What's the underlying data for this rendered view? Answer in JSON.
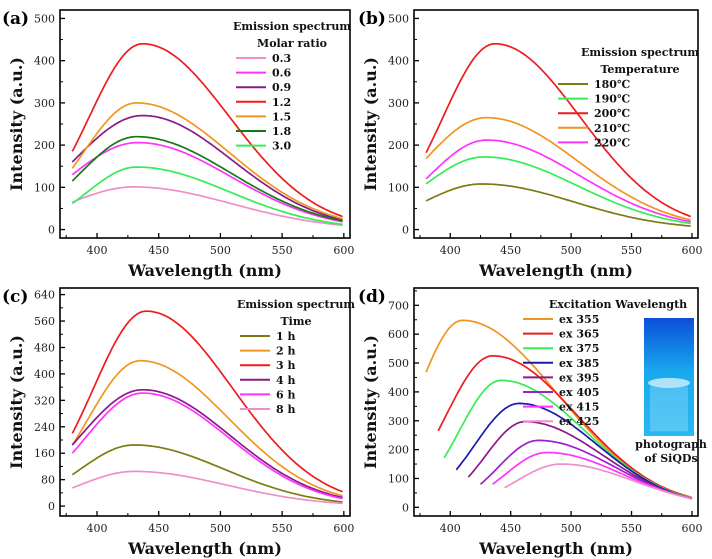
{
  "chart_data": [
    {
      "type": "line",
      "label": "(a)",
      "xlabel": "Wavelength (nm)",
      "ylabel": "Intensity (a.u.)",
      "xlim": [
        370,
        605
      ],
      "ylim": [
        -20,
        520
      ],
      "xticks": [
        400,
        450,
        500,
        550,
        600
      ],
      "yticks": [
        0,
        100,
        200,
        300,
        400,
        500
      ],
      "legend_title": [
        "Emission spectrum",
        "Molar ratio"
      ],
      "x_start": 380,
      "x_end": 600,
      "series": [
        {
          "name": "0.3",
          "color": "#ef8fc8",
          "peak_x": 430,
          "peak_y": 101,
          "y_start": 65,
          "y_end": 10
        },
        {
          "name": "0.6",
          "color": "#ff33ff",
          "peak_x": 433,
          "peak_y": 206,
          "y_start": 130,
          "y_end": 18
        },
        {
          "name": "0.9",
          "color": "#8a1a8a",
          "peak_x": 437,
          "peak_y": 270,
          "y_start": 160,
          "y_end": 22
        },
        {
          "name": "1.2",
          "color": "#ee1c1c",
          "peak_x": 437,
          "peak_y": 440,
          "y_start": 185,
          "y_end": 30
        },
        {
          "name": "1.5",
          "color": "#f0961e",
          "peak_x": 432,
          "peak_y": 300,
          "y_start": 145,
          "y_end": 25
        },
        {
          "name": "1.8",
          "color": "#157a15",
          "peak_x": 432,
          "peak_y": 220,
          "y_start": 115,
          "y_end": 20
        },
        {
          "name": "3.0",
          "color": "#33ee55",
          "peak_x": 432,
          "peak_y": 148,
          "y_start": 62,
          "y_end": 12
        }
      ]
    },
    {
      "type": "line",
      "label": "(b)",
      "xlabel": "Wavelength (nm)",
      "ylabel": "Intensity (a.u.)",
      "xlim": [
        370,
        605
      ],
      "ylim": [
        -20,
        520
      ],
      "xticks": [
        400,
        450,
        500,
        550,
        600
      ],
      "yticks": [
        0,
        100,
        200,
        300,
        400,
        500
      ],
      "legend_title": [
        "Emission spectrum",
        "Temperature"
      ],
      "x_start": 380,
      "x_end": 600,
      "series": [
        {
          "name": "180℃",
          "color": "#7c7c12",
          "peak_x": 426,
          "peak_y": 108,
          "y_start": 68,
          "y_end": 8
        },
        {
          "name": "190℃",
          "color": "#33ee55",
          "peak_x": 428,
          "peak_y": 172,
          "y_start": 108,
          "y_end": 14
        },
        {
          "name": "200℃",
          "color": "#ee1c1c",
          "peak_x": 437,
          "peak_y": 440,
          "y_start": 182,
          "y_end": 30
        },
        {
          "name": "210℃",
          "color": "#f0961e",
          "peak_x": 430,
          "peak_y": 265,
          "y_start": 168,
          "y_end": 22
        },
        {
          "name": "220℃",
          "color": "#ff33ff",
          "peak_x": 430,
          "peak_y": 212,
          "y_start": 120,
          "y_end": 18
        }
      ]
    },
    {
      "type": "line",
      "label": "(c)",
      "xlabel": "Wavelength (nm)",
      "ylabel": "Intensity (a.u.)",
      "xlim": [
        370,
        605
      ],
      "ylim": [
        -30,
        660
      ],
      "xticks": [
        400,
        450,
        500,
        550,
        600
      ],
      "yticks": [
        0,
        80,
        160,
        240,
        320,
        400,
        480,
        560,
        640
      ],
      "legend_title": [
        "Emission spectrum",
        "Time"
      ],
      "x_start": 380,
      "x_end": 600,
      "series": [
        {
          "name": "1 h",
          "color": "#7c7c12",
          "peak_x": 430,
          "peak_y": 185,
          "y_start": 95,
          "y_end": 12
        },
        {
          "name": "2 h",
          "color": "#f0961e",
          "peak_x": 435,
          "peak_y": 440,
          "y_start": 185,
          "y_end": 30
        },
        {
          "name": "3 h",
          "color": "#ee1c1c",
          "peak_x": 440,
          "peak_y": 590,
          "y_start": 220,
          "y_end": 42
        },
        {
          "name": "4 h",
          "color": "#8a1a8a",
          "peak_x": 437,
          "peak_y": 352,
          "y_start": 185,
          "y_end": 25
        },
        {
          "name": "6 h",
          "color": "#ff33ff",
          "peak_x": 437,
          "peak_y": 342,
          "y_start": 160,
          "y_end": 22
        },
        {
          "name": "8 h",
          "color": "#ef8fc8",
          "peak_x": 430,
          "peak_y": 105,
          "y_start": 55,
          "y_end": 8
        }
      ]
    },
    {
      "type": "line",
      "label": "(d)",
      "xlabel": "Wavelength (nm)",
      "ylabel": "Intensity (a.u.)",
      "xlim": [
        370,
        605
      ],
      "ylim": [
        -30,
        760
      ],
      "xticks": [
        400,
        450,
        500,
        550,
        600
      ],
      "yticks": [
        0,
        100,
        200,
        300,
        400,
        500,
        600,
        700
      ],
      "legend_title": [
        "Excitation Wavelength"
      ],
      "photo_caption": [
        "photograph",
        "of SiQDs"
      ],
      "photo_colors": {
        "top": "#0a4fd8",
        "mid": "#19a8ee",
        "bottom": "#2ab9f2",
        "glow": "#dff6ff"
      },
      "x_end": 600,
      "series": [
        {
          "name": "ex 355",
          "color": "#f0961e",
          "x_start": 380,
          "peak_x": 410,
          "peak_y": 648,
          "y_start": 468,
          "y_end": 35
        },
        {
          "name": "ex 365",
          "color": "#ee1c1c",
          "x_start": 390,
          "peak_x": 435,
          "peak_y": 525,
          "y_start": 265,
          "y_end": 33
        },
        {
          "name": "ex 375",
          "color": "#33ee55",
          "x_start": 395,
          "peak_x": 442,
          "peak_y": 440,
          "y_start": 172,
          "y_end": 32
        },
        {
          "name": "ex 385",
          "color": "#1a1ab0",
          "x_start": 405,
          "peak_x": 457,
          "peak_y": 360,
          "y_start": 130,
          "y_end": 30
        },
        {
          "name": "ex 395",
          "color": "#8a1a8a",
          "x_start": 415,
          "peak_x": 462,
          "peak_y": 297,
          "y_start": 105,
          "y_end": 30
        },
        {
          "name": "ex 405",
          "color": "#9a22cc",
          "x_start": 425,
          "peak_x": 473,
          "peak_y": 232,
          "y_start": 80,
          "y_end": 30
        },
        {
          "name": "ex 415",
          "color": "#ff33ff",
          "x_start": 435,
          "peak_x": 480,
          "peak_y": 190,
          "y_start": 80,
          "y_end": 30
        },
        {
          "name": "ex 425",
          "color": "#ef8fc8",
          "x_start": 445,
          "peak_x": 492,
          "peak_y": 150,
          "y_start": 68,
          "y_end": 30
        }
      ]
    }
  ]
}
